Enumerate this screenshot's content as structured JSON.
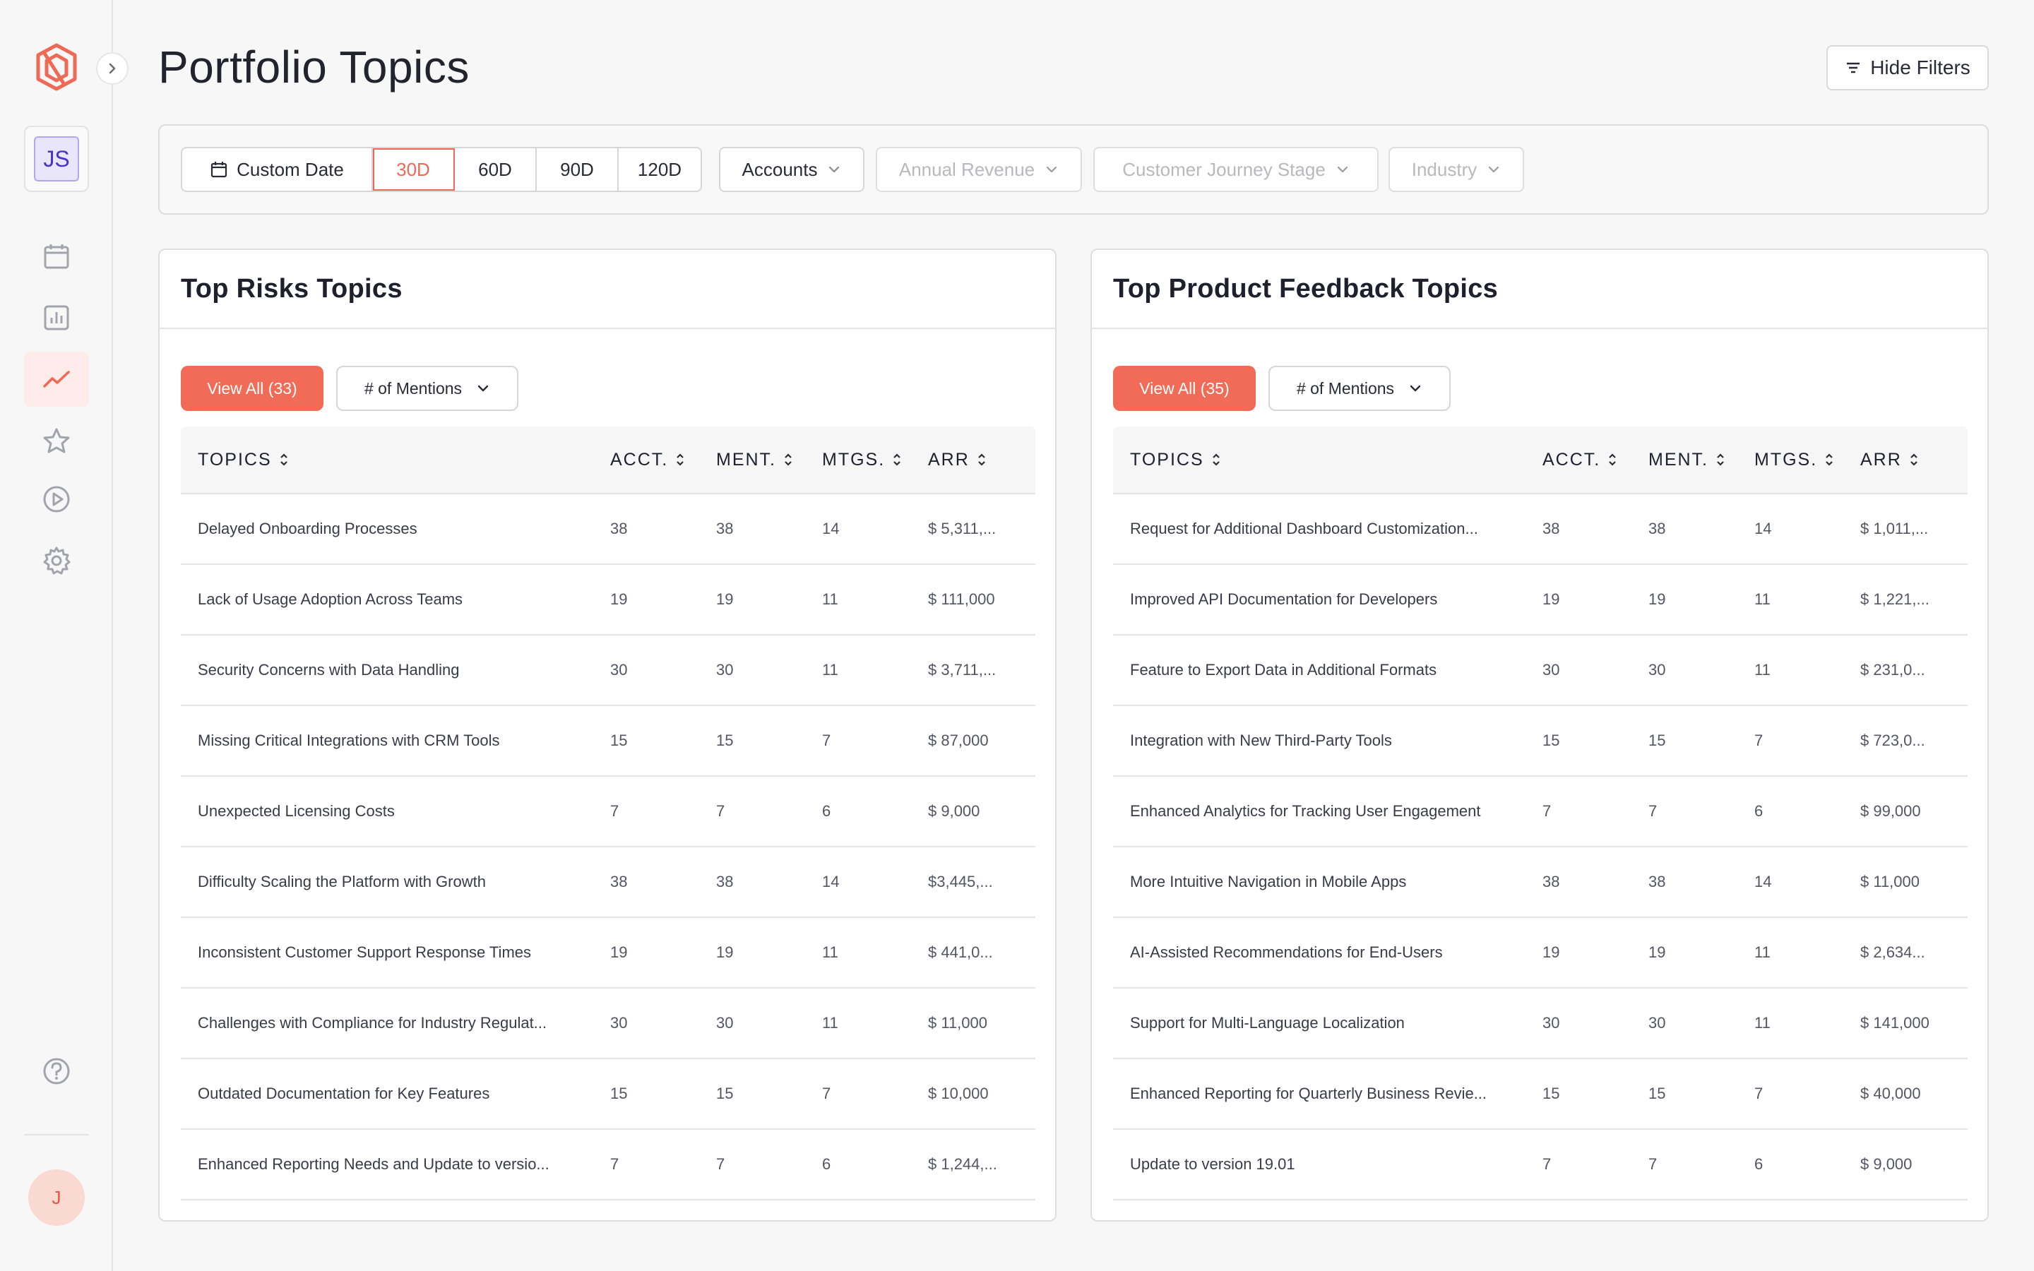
{
  "page": {
    "title": "Portfolio Topics",
    "hide_filters_label": "Hide Filters"
  },
  "sidebar": {
    "workspace_initials": "JS",
    "user_initial": "J"
  },
  "filters": {
    "custom_date_label": "Custom Date",
    "ranges": [
      "30D",
      "60D",
      "90D",
      "120D"
    ],
    "selected_range": "30D",
    "accounts_label": "Accounts",
    "annual_revenue_label": "Annual Revenue",
    "journey_stage_label": "Customer Journey Stage",
    "industry_label": "Industry"
  },
  "columns": {
    "topics": "TOPICS",
    "acct": "ACCT.",
    "ment": "MENT.",
    "mtgs": "MTGS.",
    "arr": "ARR"
  },
  "risks": {
    "title": "Top Risks Topics",
    "view_all_label": "View All (33)",
    "metric_label": "# of Mentions",
    "rows": [
      {
        "topic": "Delayed Onboarding Processes",
        "acct": "38",
        "ment": "38",
        "mtgs": "14",
        "arr": "$ 5,311,..."
      },
      {
        "topic": "Lack of Usage Adoption Across Teams",
        "acct": "19",
        "ment": "19",
        "mtgs": "11",
        "arr": "$ 111,000"
      },
      {
        "topic": "Security Concerns with Data Handling",
        "acct": "30",
        "ment": "30",
        "mtgs": "11",
        "arr": "$ 3,711,..."
      },
      {
        "topic": "Missing Critical Integrations with CRM Tools",
        "acct": "15",
        "ment": "15",
        "mtgs": "7",
        "arr": "$ 87,000"
      },
      {
        "topic": "Unexpected Licensing Costs",
        "acct": "7",
        "ment": "7",
        "mtgs": "6",
        "arr": "$ 9,000"
      },
      {
        "topic": "Difficulty Scaling the Platform with Growth",
        "acct": "38",
        "ment": "38",
        "mtgs": "14",
        "arr": "$3,445,..."
      },
      {
        "topic": "Inconsistent Customer Support Response Times",
        "acct": "19",
        "ment": "19",
        "mtgs": "11",
        "arr": "$ 441,0..."
      },
      {
        "topic": "Challenges with Compliance for Industry Regulat...",
        "acct": "30",
        "ment": "30",
        "mtgs": "11",
        "arr": "$ 11,000"
      },
      {
        "topic": "Outdated Documentation for Key Features",
        "acct": "15",
        "ment": "15",
        "mtgs": "7",
        "arr": "$ 10,000"
      },
      {
        "topic": "Enhanced Reporting Needs and Update to versio...",
        "acct": "7",
        "ment": "7",
        "mtgs": "6",
        "arr": "$ 1,244,..."
      }
    ]
  },
  "feedback": {
    "title": "Top Product Feedback Topics",
    "view_all_label": "View All (35)",
    "metric_label": "# of Mentions",
    "rows": [
      {
        "topic": "Request for Additional Dashboard Customization...",
        "acct": "38",
        "ment": "38",
        "mtgs": "14",
        "arr": "$ 1,011,..."
      },
      {
        "topic": "Improved API Documentation for Developers",
        "acct": "19",
        "ment": "19",
        "mtgs": "11",
        "arr": "$ 1,221,..."
      },
      {
        "topic": "Feature to Export Data in Additional Formats",
        "acct": "30",
        "ment": "30",
        "mtgs": "11",
        "arr": "$ 231,0..."
      },
      {
        "topic": "Integration with New Third-Party Tools",
        "acct": "15",
        "ment": "15",
        "mtgs": "7",
        "arr": "$ 723,0..."
      },
      {
        "topic": "Enhanced Analytics for Tracking User Engagement",
        "acct": "7",
        "ment": "7",
        "mtgs": "6",
        "arr": "$ 99,000"
      },
      {
        "topic": "More Intuitive Navigation in Mobile Apps",
        "acct": "38",
        "ment": "38",
        "mtgs": "14",
        "arr": "$ 11,000"
      },
      {
        "topic": "AI-Assisted Recommendations for End-Users",
        "acct": "19",
        "ment": "19",
        "mtgs": "11",
        "arr": "$ 2,634..."
      },
      {
        "topic": "Support for Multi-Language Localization",
        "acct": "30",
        "ment": "30",
        "mtgs": "11",
        "arr": "$ 141,000"
      },
      {
        "topic": "Enhanced Reporting for Quarterly Business Revie...",
        "acct": "15",
        "ment": "15",
        "mtgs": "7",
        "arr": "$ 40,000"
      },
      {
        "topic": "Update to version 19.01",
        "acct": "7",
        "ment": "7",
        "mtgs": "6",
        "arr": "$ 9,000"
      }
    ]
  },
  "colors": {
    "accent": "#f26b57",
    "accent_soft": "#fdecea",
    "workspace_badge": "#4b32c9"
  },
  "icons": {
    "nav": [
      "calendar-icon",
      "bar-chart-icon",
      "trend-line-icon",
      "star-icon",
      "play-circle-icon",
      "gear-icon"
    ],
    "other": [
      "logo-icon",
      "chevron-right-icon",
      "help-icon",
      "filter-lines-icon",
      "chevron-down-icon",
      "sort-icon"
    ]
  }
}
